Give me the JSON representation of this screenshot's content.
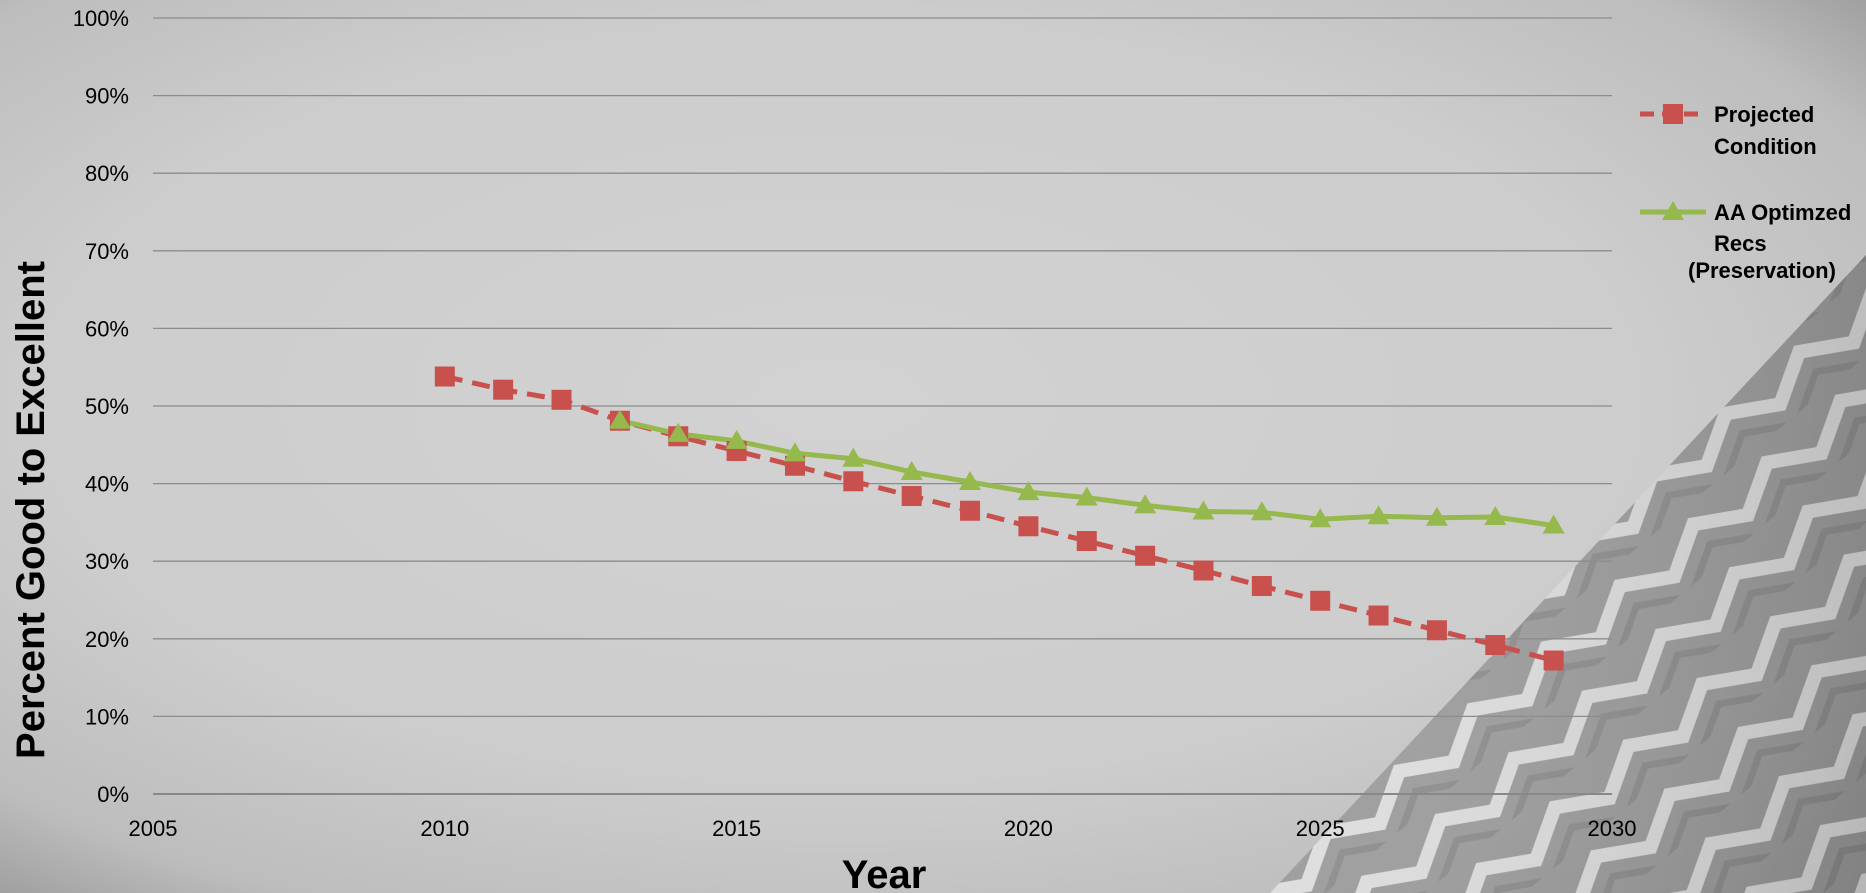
{
  "chart_data": {
    "type": "line",
    "title": "",
    "xlabel": "Year",
    "ylabel": "Percent Good to Excellent",
    "xlim": [
      2005,
      2030
    ],
    "ylim": [
      0,
      100
    ],
    "x_ticks": [
      "2005",
      "2010",
      "2015",
      "2020",
      "2025",
      "2030"
    ],
    "x_tick_values": [
      2005,
      2010,
      2015,
      2020,
      2025,
      2030
    ],
    "y_ticks": [
      "0%",
      "10%",
      "20%",
      "30%",
      "40%",
      "50%",
      "60%",
      "70%",
      "80%",
      "90%",
      "100%"
    ],
    "y_tick_values": [
      0,
      10,
      20,
      30,
      40,
      50,
      60,
      70,
      80,
      90,
      100
    ],
    "grid": true,
    "legend_position": "right",
    "series": [
      {
        "name": "Projected Condition",
        "legend_lines": [
          "Projected",
          "Condition"
        ],
        "color": "#c8504d",
        "line_style": "dashed",
        "marker": "square",
        "x": [
          2010,
          2011,
          2012,
          2013,
          2014,
          2015,
          2016,
          2017,
          2018,
          2019,
          2020,
          2021,
          2022,
          2023,
          2024,
          2025,
          2026,
          2027,
          2028,
          2029
        ],
        "y": [
          53.8,
          52.1,
          50.8,
          48.1,
          46.1,
          44.2,
          42.3,
          40.3,
          38.4,
          36.5,
          34.5,
          32.6,
          30.7,
          28.8,
          26.8,
          24.9,
          23.0,
          21.1,
          19.2,
          17.2
        ]
      },
      {
        "name": "AA Optimzed Recs (Preservation)",
        "legend_lines": [
          "AA Optimzed",
          "Recs",
          "(Preservation)"
        ],
        "color": "#95b94d",
        "line_style": "solid",
        "marker": "triangle",
        "x": [
          2013,
          2014,
          2015,
          2016,
          2017,
          2018,
          2019,
          2020,
          2021,
          2022,
          2023,
          2024,
          2025,
          2026,
          2027,
          2028,
          2029
        ],
        "y": [
          48.1,
          46.4,
          45.5,
          43.9,
          43.2,
          41.5,
          40.2,
          38.9,
          38.2,
          37.2,
          36.4,
          36.3,
          35.4,
          35.8,
          35.6,
          35.7,
          34.6
        ]
      }
    ]
  }
}
